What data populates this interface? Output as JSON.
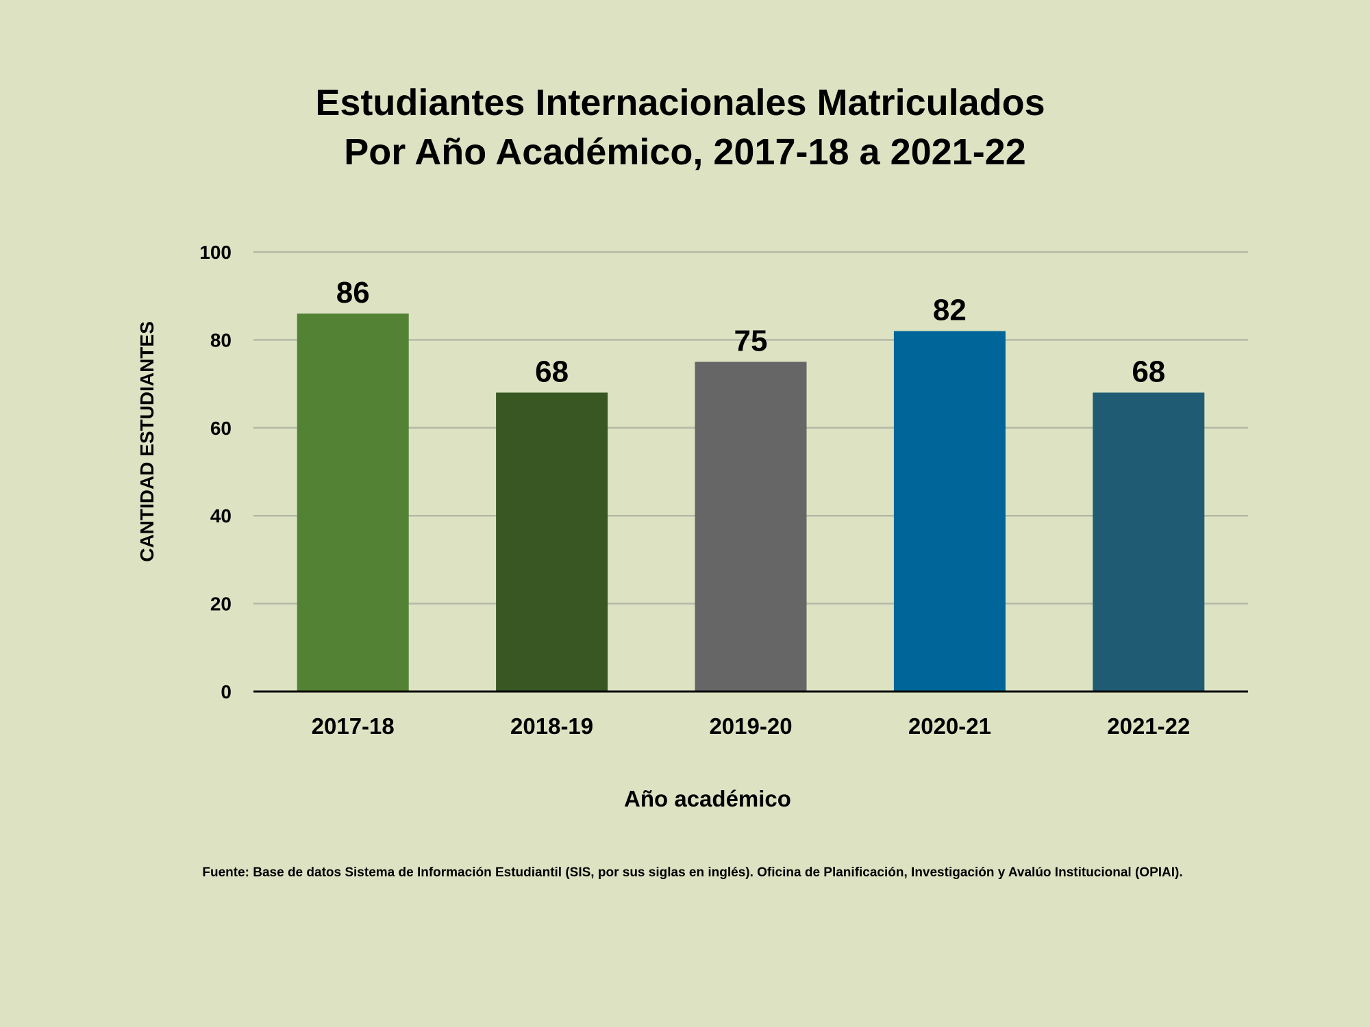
{
  "chart_data": {
    "type": "bar",
    "title_lines": [
      "Estudiantes Internacionales Matriculados",
      "Por Año Académico, 2017-18 a 2021-22"
    ],
    "categories": [
      "2017-18",
      "2018-19",
      "2019-20",
      "2020-21",
      "2021-22"
    ],
    "values": [
      86,
      68,
      75,
      82,
      68
    ],
    "data_labels": [
      "86",
      "68",
      "75",
      "82",
      "68"
    ],
    "bar_colors": [
      "#548235",
      "#385723",
      "#666666",
      "#006699",
      "#1f5c73"
    ],
    "xlabel": "Año académico",
    "ylabel": "CANTIDAD ESTUDIANTES",
    "ylim": [
      0,
      100
    ],
    "yticks": [
      0,
      20,
      40,
      60,
      80,
      100
    ],
    "ytick_labels": [
      "0",
      "20",
      "40",
      "60",
      "80",
      "100"
    ],
    "grid": true,
    "legend": "none",
    "source_note": "Fuente: Base de datos  Sistema de Información Estudiantil (SIS, por sus siglas en inglés). Oficina de Planificación, Investigación y Avalúo Institucional (OPIAI)."
  },
  "colors": {
    "background": "#dde3c2",
    "gridline": "#b4b8a6",
    "text": "#000000"
  }
}
